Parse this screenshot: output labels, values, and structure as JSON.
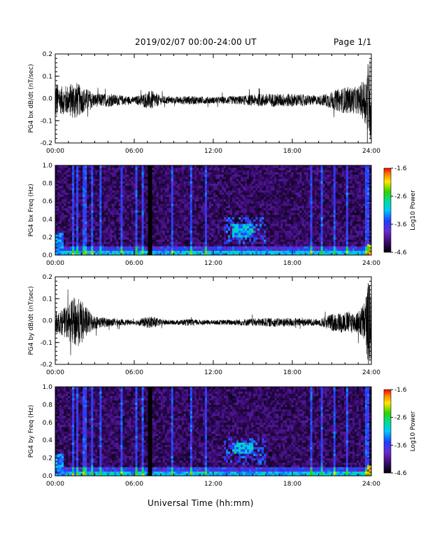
{
  "header": {
    "title": "2019/02/07  00:00-24:00 UT",
    "page": "Page 1/1"
  },
  "xaxis_title": "Universal Time (hh:mm)",
  "chart_data": [
    {
      "type": "line",
      "ylabel": "PG4 bx dB/dt (nT/sec)",
      "x_ticks": [
        "00:00",
        "06:00",
        "12:00",
        "18:00",
        "24:00"
      ],
      "xlim": [
        0,
        24
      ],
      "ylim": [
        -0.2,
        0.2
      ],
      "y_ticks": [
        -0.2,
        -0.1,
        0.0,
        0.1,
        0.2
      ],
      "y_tick_labels": [
        "-0.2",
        "-0.1",
        "0.0",
        "0.1",
        "0.2"
      ],
      "amplitude_envelope": {
        "x": [
          0,
          0.3,
          1.0,
          1.5,
          2.0,
          2.5,
          3,
          4,
          6,
          7.3,
          8,
          9,
          10,
          12,
          14,
          16,
          18,
          20,
          21,
          22,
          23,
          23.5,
          23.8,
          24
        ],
        "y": [
          0.1,
          0.06,
          0.07,
          0.09,
          0.06,
          0.05,
          0.03,
          0.03,
          0.015,
          0.045,
          0.02,
          0.015,
          0.02,
          0.015,
          0.02,
          0.03,
          0.03,
          0.02,
          0.04,
          0.06,
          0.06,
          0.1,
          0.2,
          0.18
        ]
      },
      "line_color": "#000000"
    },
    {
      "type": "heatmap",
      "ylabel": "PG4 bx Freq (Hz)",
      "x_ticks": [
        "00:00",
        "06:00",
        "12:00",
        "18:00",
        "24:00"
      ],
      "xlim": [
        0,
        24
      ],
      "ylim": [
        0,
        1.0
      ],
      "y_ticks": [
        0.0,
        0.2,
        0.4,
        0.6,
        0.8,
        1.0
      ],
      "y_tick_labels": [
        "0.0",
        "0.2",
        "0.4",
        "0.6",
        "0.8",
        "1.0"
      ],
      "colorbar": {
        "label": "Log10 Power",
        "range": [
          -4.6,
          -1.6
        ],
        "ticks": [
          "-1.6",
          "-2.6",
          "-3.6",
          "-4.6"
        ]
      },
      "features": [
        {
          "x": [
            13.5,
            15.0
          ],
          "y": [
            0.2,
            0.36
          ],
          "level": -3.0,
          "note": "green/cyan band"
        },
        {
          "x": [
            0,
            24
          ],
          "y": [
            0,
            0.05
          ],
          "level": -3.2,
          "note": "low-frequency floor"
        },
        {
          "x": [
            7.1,
            7.3
          ],
          "y": [
            0,
            1.0
          ],
          "level": -5.0,
          "note": "data gap"
        }
      ]
    },
    {
      "type": "line",
      "ylabel": "PG4 by dB/dt (nT/sec)",
      "x_ticks": [
        "00:00",
        "06:00",
        "12:00",
        "18:00",
        "24:00"
      ],
      "xlim": [
        0,
        24
      ],
      "ylim": [
        -0.2,
        0.2
      ],
      "y_ticks": [
        -0.2,
        -0.1,
        0.0,
        0.1,
        0.2
      ],
      "y_tick_labels": [
        "-0.2",
        "-0.1",
        "0.0",
        "0.1",
        "0.2"
      ],
      "amplitude_envelope": {
        "x": [
          0,
          0.3,
          1.0,
          1.5,
          2.0,
          2.5,
          3,
          4,
          6,
          7.3,
          8,
          9,
          10,
          12,
          14,
          16,
          18,
          20,
          21,
          22,
          23,
          23.5,
          23.8,
          24
        ],
        "y": [
          0.05,
          0.05,
          0.08,
          0.12,
          0.1,
          0.06,
          0.03,
          0.02,
          0.01,
          0.03,
          0.015,
          0.01,
          0.015,
          0.01,
          0.015,
          0.02,
          0.02,
          0.015,
          0.04,
          0.05,
          0.05,
          0.1,
          0.2,
          0.17
        ]
      },
      "line_color": "#000000"
    },
    {
      "type": "heatmap",
      "ylabel": "PG4 by Freq (Hz)",
      "x_ticks": [
        "00:00",
        "06:00",
        "12:00",
        "18:00",
        "24:00"
      ],
      "xlim": [
        0,
        24
      ],
      "ylim": [
        0,
        1.0
      ],
      "y_ticks": [
        0.0,
        0.2,
        0.4,
        0.6,
        0.8,
        1.0
      ],
      "y_tick_labels": [
        "0.0",
        "0.2",
        "0.4",
        "0.6",
        "0.8",
        "1.0"
      ],
      "colorbar": {
        "label": "Log10 Power",
        "range": [
          -4.6,
          -1.6
        ],
        "ticks": [
          "-1.6",
          "-2.6",
          "-3.6",
          "-4.6"
        ]
      },
      "features": [
        {
          "x": [
            13.5,
            15.0
          ],
          "y": [
            0.24,
            0.38
          ],
          "level": -3.0,
          "note": "green/cyan band"
        },
        {
          "x": [
            0,
            24
          ],
          "y": [
            0,
            0.05
          ],
          "level": -3.2,
          "note": "low-frequency floor"
        },
        {
          "x": [
            7.1,
            7.3
          ],
          "y": [
            0,
            1.0
          ],
          "level": -5.0,
          "note": "data gap"
        }
      ]
    }
  ]
}
